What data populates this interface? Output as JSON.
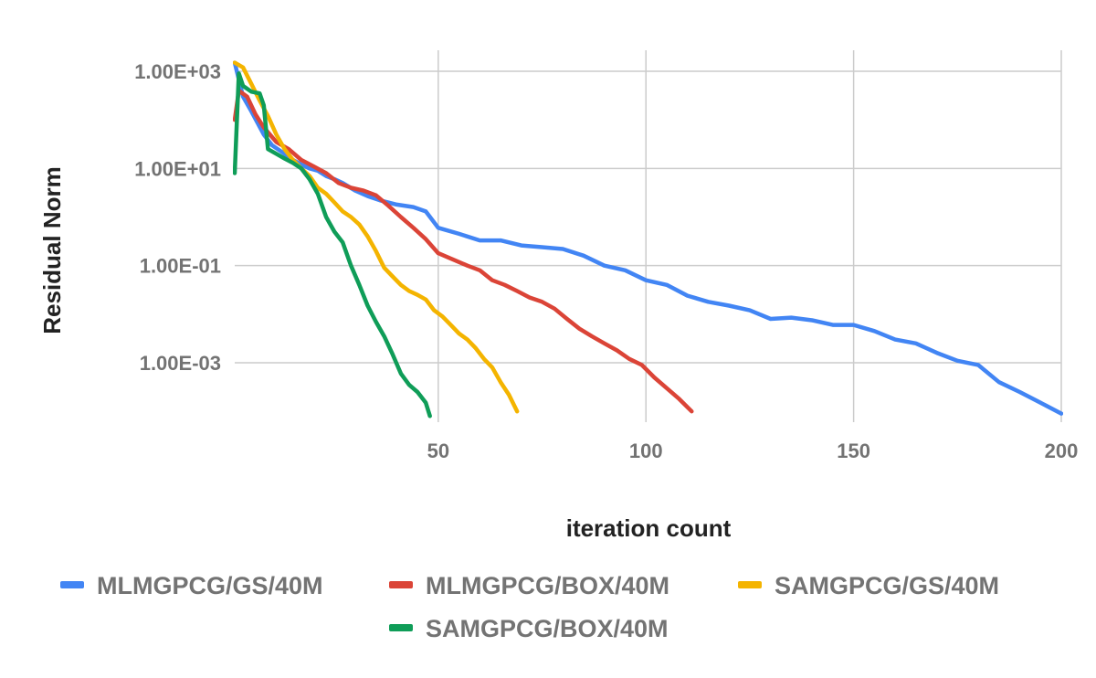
{
  "chart_data": {
    "type": "line",
    "title": "",
    "xlabel": "iteration count",
    "ylabel": "Residual Norm",
    "xlim": [
      1,
      200
    ],
    "ylim": [
      6e-05,
      1500
    ],
    "yscale": "log",
    "x_ticks": [
      {
        "value": 50,
        "label": "50"
      },
      {
        "value": 100,
        "label": "100"
      },
      {
        "value": 150,
        "label": "150"
      },
      {
        "value": 200,
        "label": "200"
      }
    ],
    "y_ticks": [
      {
        "value": 1000,
        "label": "1.00E+03"
      },
      {
        "value": 10,
        "label": "1.00E+01"
      },
      {
        "value": 0.1,
        "label": "1.00E-01"
      },
      {
        "value": 0.001,
        "label": "1.00E-03"
      }
    ],
    "grid": true,
    "legend_position": "bottom",
    "series": [
      {
        "name": "MLMGPCG/GS/40M",
        "color": "#4285f4",
        "points": [
          [
            1,
            1500
          ],
          [
            3,
            300
          ],
          [
            5,
            150
          ],
          [
            8,
            50
          ],
          [
            10,
            30
          ],
          [
            13,
            20
          ],
          [
            15,
            15
          ],
          [
            17,
            12
          ],
          [
            19,
            10
          ],
          [
            21,
            9
          ],
          [
            23,
            7
          ],
          [
            25,
            6
          ],
          [
            27,
            5
          ],
          [
            30,
            3.5
          ],
          [
            33,
            2.7
          ],
          [
            36,
            2.2
          ],
          [
            40,
            1.8
          ],
          [
            44,
            1.6
          ],
          [
            47,
            1.3
          ],
          [
            50,
            0.6
          ],
          [
            55,
            0.45
          ],
          [
            60,
            0.33
          ],
          [
            65,
            0.33
          ],
          [
            70,
            0.26
          ],
          [
            75,
            0.24
          ],
          [
            80,
            0.22
          ],
          [
            85,
            0.16
          ],
          [
            90,
            0.1
          ],
          [
            95,
            0.08
          ],
          [
            100,
            0.05
          ],
          [
            105,
            0.04
          ],
          [
            110,
            0.024
          ],
          [
            115,
            0.018
          ],
          [
            120,
            0.015
          ],
          [
            125,
            0.012
          ],
          [
            130,
            0.008
          ],
          [
            135,
            0.0085
          ],
          [
            140,
            0.0075
          ],
          [
            145,
            0.006
          ],
          [
            150,
            0.006
          ],
          [
            155,
            0.0045
          ],
          [
            160,
            0.003
          ],
          [
            165,
            0.0025
          ],
          [
            170,
            0.0016
          ],
          [
            175,
            0.0011
          ],
          [
            180,
            0.0009
          ],
          [
            185,
            0.0004
          ],
          [
            190,
            0.00025
          ],
          [
            195,
            0.00015
          ],
          [
            200,
            9e-05
          ]
        ]
      },
      {
        "name": "MLMGPCG/BOX/40M",
        "color": "#db4437",
        "points": [
          [
            1,
            100
          ],
          [
            2,
            400
          ],
          [
            4,
            300
          ],
          [
            6,
            130
          ],
          [
            8,
            70
          ],
          [
            11,
            35
          ],
          [
            14,
            25
          ],
          [
            17,
            15
          ],
          [
            20,
            11
          ],
          [
            23,
            8
          ],
          [
            26,
            5
          ],
          [
            29,
            4
          ],
          [
            32,
            3.5
          ],
          [
            35,
            2.8
          ],
          [
            38,
            1.7
          ],
          [
            41,
            1
          ],
          [
            44,
            0.6
          ],
          [
            47,
            0.35
          ],
          [
            50,
            0.18
          ],
          [
            53,
            0.14
          ],
          [
            57,
            0.1
          ],
          [
            60,
            0.08
          ],
          [
            63,
            0.05
          ],
          [
            66,
            0.04
          ],
          [
            69,
            0.03
          ],
          [
            72,
            0.022
          ],
          [
            75,
            0.018
          ],
          [
            78,
            0.013
          ],
          [
            81,
            0.008
          ],
          [
            84,
            0.005
          ],
          [
            87,
            0.0035
          ],
          [
            90,
            0.0025
          ],
          [
            93,
            0.0018
          ],
          [
            96,
            0.0012
          ],
          [
            99,
            0.0009
          ],
          [
            102,
            0.0005
          ],
          [
            105,
            0.0003
          ],
          [
            108,
            0.00018
          ],
          [
            111,
            0.0001
          ]
        ]
      },
      {
        "name": "SAMGPCG/GS/40M",
        "color": "#f4b400",
        "points": [
          [
            1,
            1500
          ],
          [
            3,
            1200
          ],
          [
            5,
            550
          ],
          [
            7,
            250
          ],
          [
            9,
            120
          ],
          [
            11,
            50
          ],
          [
            13,
            25
          ],
          [
            15,
            15
          ],
          [
            17,
            10
          ],
          [
            19,
            7
          ],
          [
            21,
            4
          ],
          [
            23,
            3
          ],
          [
            25,
            2
          ],
          [
            27,
            1.3
          ],
          [
            29,
            1
          ],
          [
            31,
            0.7
          ],
          [
            33,
            0.4
          ],
          [
            35,
            0.2
          ],
          [
            37,
            0.09
          ],
          [
            39,
            0.06
          ],
          [
            41,
            0.04
          ],
          [
            43,
            0.03
          ],
          [
            45,
            0.025
          ],
          [
            47,
            0.02
          ],
          [
            49,
            0.012
          ],
          [
            51,
            0.009
          ],
          [
            53,
            0.006
          ],
          [
            55,
            0.004
          ],
          [
            57,
            0.003
          ],
          [
            59,
            0.002
          ],
          [
            61,
            0.0012
          ],
          [
            63,
            0.0008
          ],
          [
            65,
            0.0004
          ],
          [
            67,
            0.00022
          ],
          [
            69,
            0.0001
          ]
        ]
      },
      {
        "name": "SAMGPCG/BOX/40M",
        "color": "#0f9d58",
        "points": [
          [
            1,
            8
          ],
          [
            2,
            900
          ],
          [
            3,
            500
          ],
          [
            5,
            380
          ],
          [
            7,
            350
          ],
          [
            8,
            200
          ],
          [
            9,
            25
          ],
          [
            11,
            20
          ],
          [
            13,
            16
          ],
          [
            15,
            13
          ],
          [
            17,
            10
          ],
          [
            19,
            6
          ],
          [
            21,
            3
          ],
          [
            23,
            1
          ],
          [
            25,
            0.5
          ],
          [
            27,
            0.3
          ],
          [
            29,
            0.1
          ],
          [
            31,
            0.04
          ],
          [
            33,
            0.015
          ],
          [
            35,
            0.007
          ],
          [
            37,
            0.0035
          ],
          [
            39,
            0.0015
          ],
          [
            41,
            0.0006
          ],
          [
            43,
            0.00035
          ],
          [
            45,
            0.00025
          ],
          [
            47,
            0.00015
          ],
          [
            48,
            8e-05
          ]
        ]
      }
    ]
  }
}
